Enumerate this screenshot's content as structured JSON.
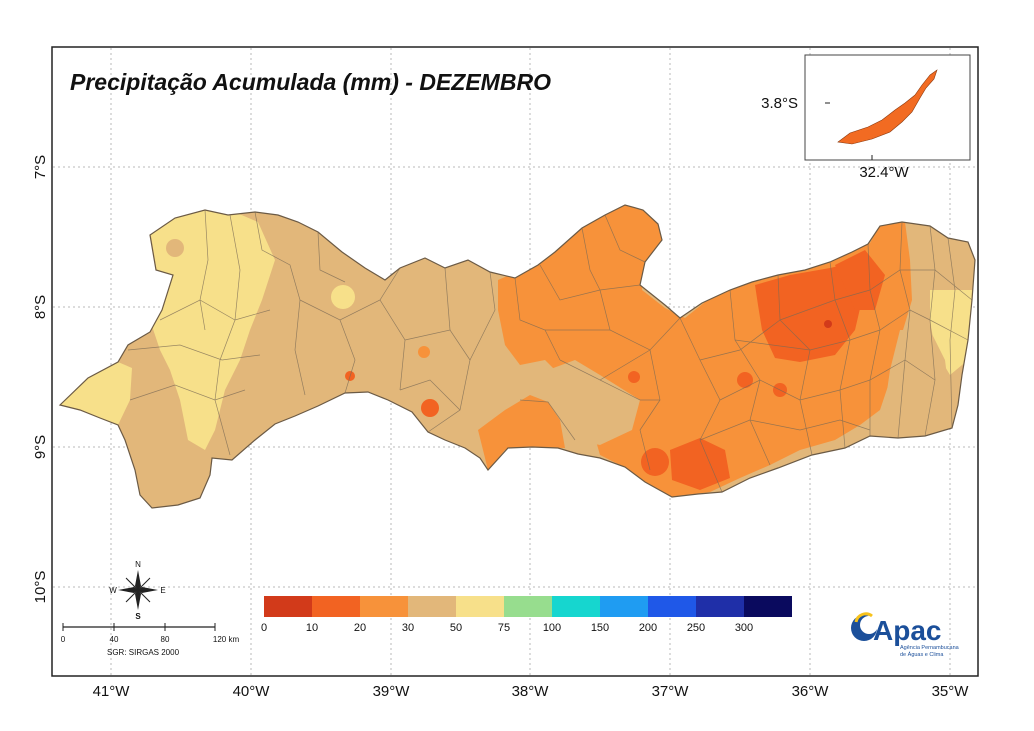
{
  "map": {
    "title": "Precipitação Acumulada (mm) - DEZEMBRO",
    "lon_labels": [
      "41°W",
      "40°W",
      "39°W",
      "38°W",
      "37°W",
      "36°W",
      "35°W"
    ],
    "lat_labels": [
      "7°S",
      "8°S",
      "9°S",
      "10°S"
    ]
  },
  "inset": {
    "lat_label": "3.8°S",
    "lon_label": "32.4°W",
    "fill_color": "#f26b22"
  },
  "legend": {
    "tick_labels": [
      "0",
      "10",
      "20",
      "30",
      "50",
      "75",
      "100",
      "150",
      "200",
      "250",
      "300"
    ],
    "colors": [
      "#d23a1a",
      "#f26322",
      "#f7923a",
      "#e2b77a",
      "#f7e08a",
      "#97dd8e",
      "#16d6cf",
      "#1f9cf2",
      "#1f58e8",
      "#1f2fa8",
      "#0a0a5e"
    ]
  },
  "compass": {
    "north": "N",
    "south": "S",
    "east": "E",
    "west": "W"
  },
  "scalebar": {
    "ticks": [
      "0",
      "40",
      "80",
      "120 km"
    ],
    "datum": "SGR: SIRGAS 2000"
  },
  "logo": {
    "name": "Apac",
    "subtitle_line1": "Agência Pernambucana",
    "subtitle_line2": "de Águas e Clima"
  }
}
